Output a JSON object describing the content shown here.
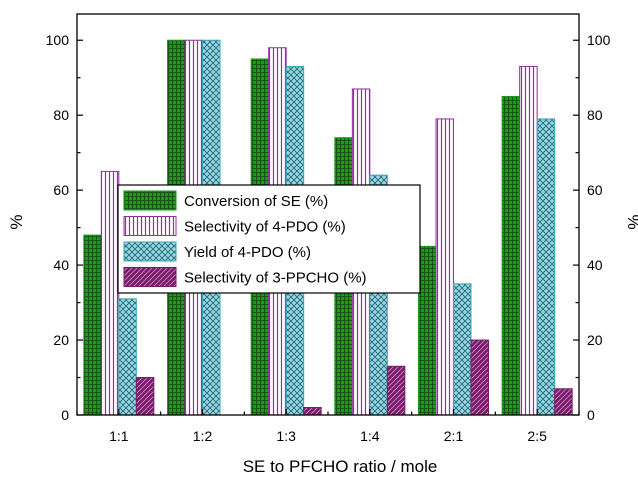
{
  "chart_data": {
    "type": "bar",
    "title": "",
    "xlabel": "SE to PFCHO ratio / mole",
    "ylabel": "%",
    "ylabel_right": "%",
    "ylim": [
      0,
      107
    ],
    "yticks": [
      0,
      20,
      40,
      60,
      80,
      100
    ],
    "categories": [
      "1:1",
      "1:2",
      "1:3",
      "1:4",
      "2:1",
      "2:5"
    ],
    "series": [
      {
        "name": "Conversion of SE (%)",
        "values": [
          48,
          100,
          95,
          74,
          45,
          85
        ],
        "color": "#1a9a1a",
        "pattern": "grid"
      },
      {
        "name": "Selectivity of 4-PDO (%)",
        "values": [
          65,
          100,
          98,
          87,
          79,
          93
        ],
        "color": "#9a2aaa",
        "pattern": "vertical-lines"
      },
      {
        "name": "Yield of 4-PDO (%)",
        "values": [
          31,
          100,
          93,
          64,
          35,
          79
        ],
        "color": "#3aa6b6",
        "pattern": "crosshatch"
      },
      {
        "name": "Selectivity of 3-PPCHO (%)",
        "values": [
          10,
          0,
          2,
          13,
          20,
          7
        ],
        "color": "#7a1a6a",
        "pattern": "diagonal"
      }
    ],
    "grid": false,
    "legend_position": "center-left"
  }
}
